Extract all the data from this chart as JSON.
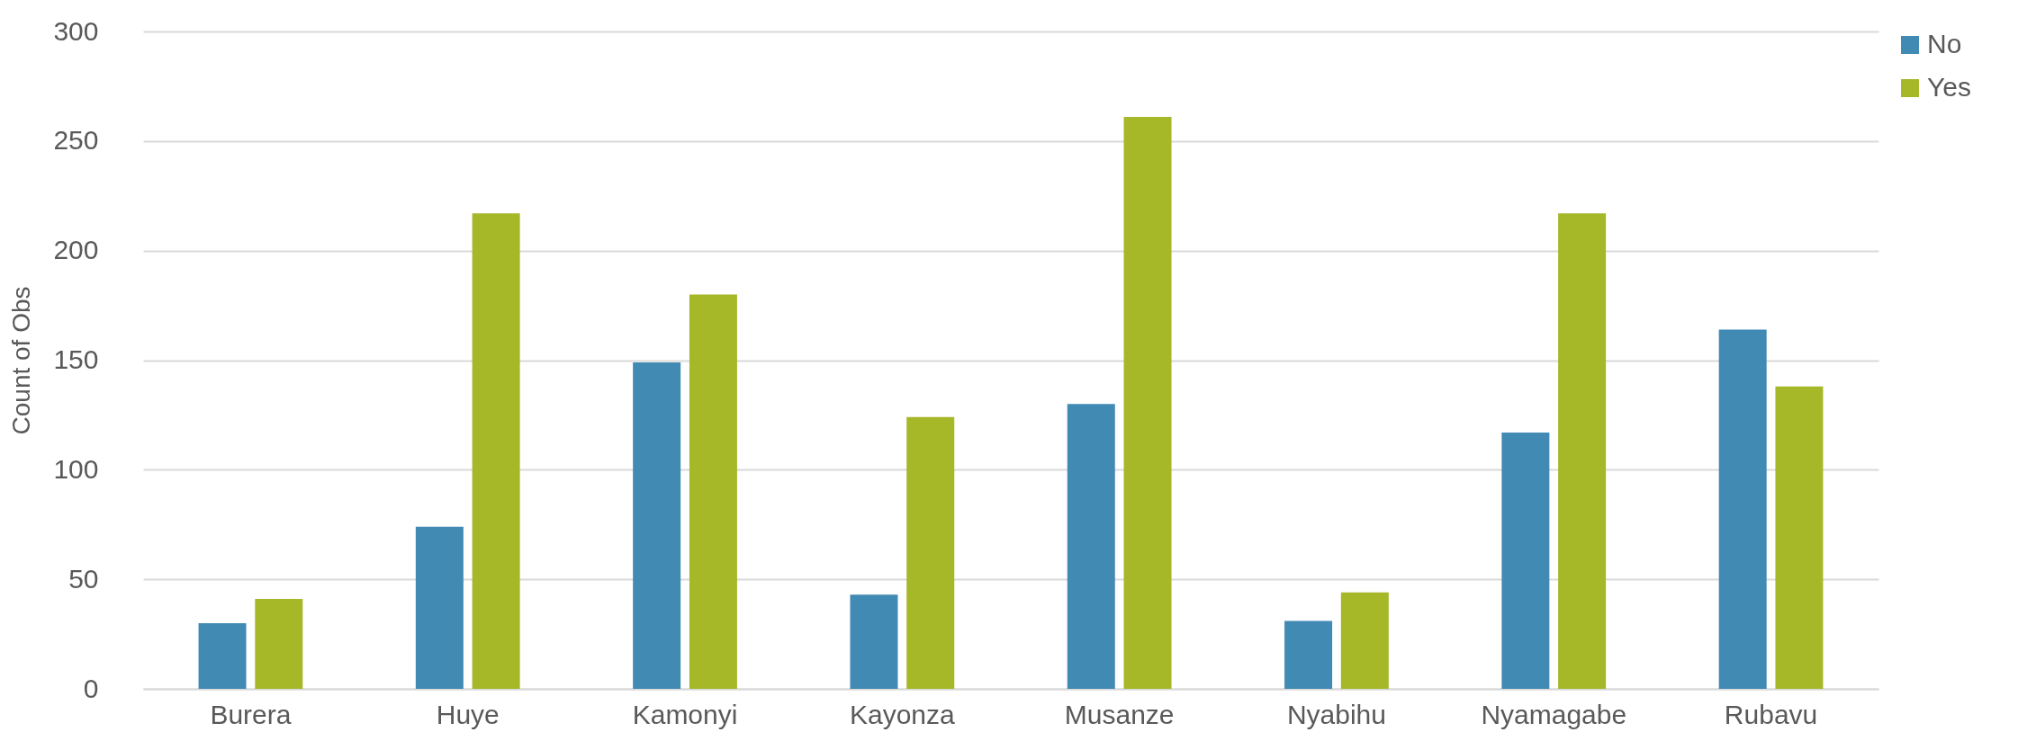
{
  "chart_data": {
    "type": "bar",
    "ylabel": "Count of Obs",
    "categories": [
      "Burera",
      "Huye",
      "Kamonyi",
      "Kayonza",
      "Musanze",
      "Nyabihu",
      "Nyamagabe",
      "Rubavu"
    ],
    "series": [
      {
        "name": "No",
        "color": "#418ab3",
        "values": [
          30,
          74,
          149,
          43,
          130,
          31,
          117,
          164
        ]
      },
      {
        "name": "Yes",
        "color": "#a6b727",
        "values": [
          41,
          217,
          180,
          124,
          261,
          44,
          217,
          138
        ]
      }
    ],
    "ylim": [
      0,
      300
    ],
    "yticks": [
      0,
      50,
      100,
      150,
      200,
      250,
      300
    ],
    "grid": "y",
    "legend": "right"
  }
}
